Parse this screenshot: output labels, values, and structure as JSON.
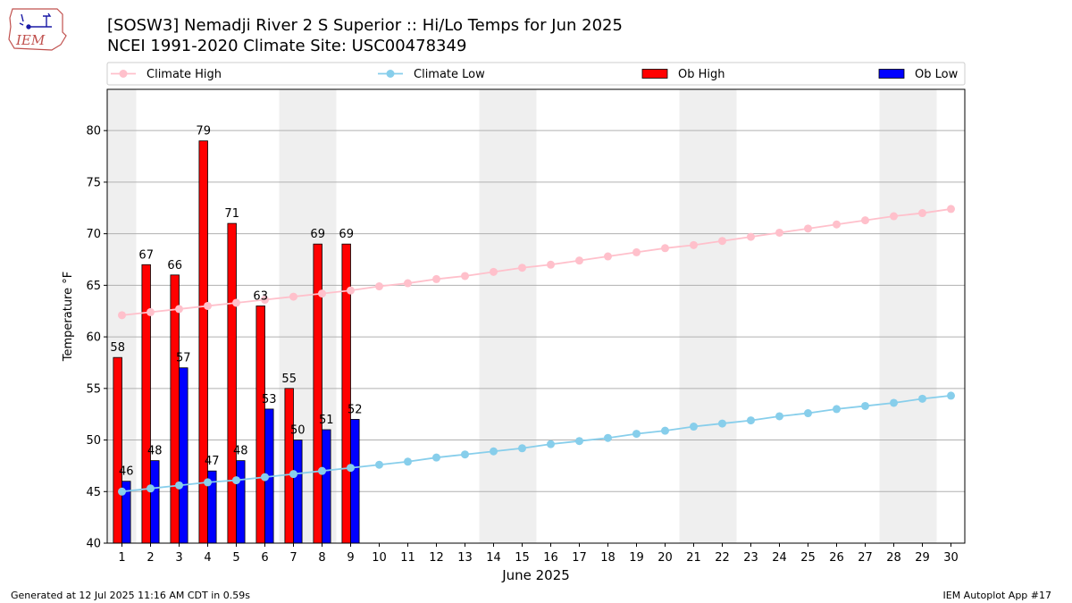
{
  "header": {
    "title_line1": "[SOSW3] Nemadji River 2 S Superior :: Hi/Lo Temps for Jun 2025",
    "title_line2": "NCEI 1991-2020 Climate Site: USC00478349",
    "logo_text": "IEM"
  },
  "footer": {
    "generated": "Generated at 12 Jul 2025 11:16 AM CDT in 0.59s",
    "app": "IEM Autoplot App #17"
  },
  "chart_data": {
    "type": "bar",
    "xlabel": "June 2025",
    "ylabel": "Temperature °F",
    "ylim": [
      40,
      84
    ],
    "yticks": [
      40,
      45,
      50,
      55,
      60,
      65,
      70,
      75,
      80
    ],
    "days": [
      1,
      2,
      3,
      4,
      5,
      6,
      7,
      8,
      9,
      10,
      11,
      12,
      13,
      14,
      15,
      16,
      17,
      18,
      19,
      20,
      21,
      22,
      23,
      24,
      25,
      26,
      27,
      28,
      29,
      30
    ],
    "weekend_days": [
      1,
      7,
      8,
      14,
      15,
      21,
      22,
      28,
      29
    ],
    "grid": "horizontal",
    "legend_position": "top",
    "series": [
      {
        "name": "Climate High",
        "kind": "line",
        "color": "#ffc0cb",
        "values": [
          62.1,
          62.4,
          62.7,
          63.0,
          63.3,
          63.6,
          63.9,
          64.2,
          64.5,
          64.9,
          65.2,
          65.6,
          65.9,
          66.3,
          66.7,
          67.0,
          67.4,
          67.8,
          68.2,
          68.6,
          68.9,
          69.3,
          69.7,
          70.1,
          70.5,
          70.9,
          71.3,
          71.7,
          72.0,
          72.4
        ]
      },
      {
        "name": "Climate Low",
        "kind": "line",
        "color": "#87ceeb",
        "values": [
          45.0,
          45.3,
          45.6,
          45.9,
          46.1,
          46.4,
          46.7,
          47.0,
          47.3,
          47.6,
          47.9,
          48.3,
          48.6,
          48.9,
          49.2,
          49.6,
          49.9,
          50.2,
          50.6,
          50.9,
          51.3,
          51.6,
          51.9,
          52.3,
          52.6,
          53.0,
          53.3,
          53.6,
          54.0,
          54.3
        ]
      },
      {
        "name": "Ob High",
        "kind": "bar",
        "color": "#ff0000",
        "values": [
          58,
          67,
          66,
          79,
          71,
          63,
          55,
          69,
          69
        ]
      },
      {
        "name": "Ob Low",
        "kind": "bar",
        "color": "#0000ff",
        "values": [
          46,
          48,
          57,
          47,
          48,
          53,
          50,
          51,
          52
        ]
      }
    ]
  }
}
